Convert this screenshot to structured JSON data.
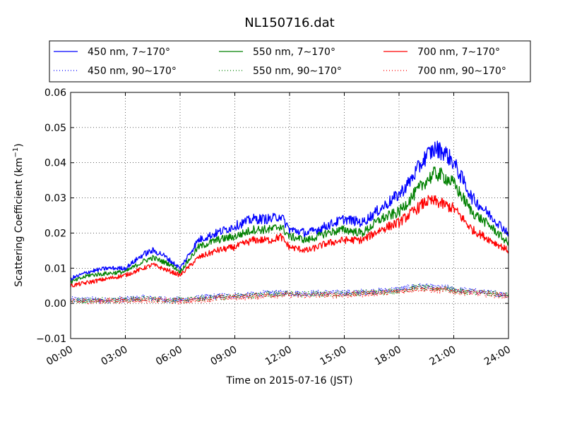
{
  "chart_data": {
    "type": "line",
    "title": "NL150716.dat",
    "xlabel": "Time on 2015-07-16 (JST)",
    "ylabel": "Scattering Coefficient (km",
    "ylabel_sup": "−1",
    "ylabel_end": ")",
    "xlim": [
      "2015-07-16 00:00",
      "2015-07-17 00:00"
    ],
    "ylim": [
      -0.01,
      0.06
    ],
    "x_ticks": [
      "00:00",
      "03:00",
      "06:00",
      "09:00",
      "12:00",
      "15:00",
      "18:00",
      "21:00",
      "24:00"
    ],
    "y_ticks": [
      "−0.01",
      "0.00",
      "0.01",
      "0.02",
      "0.03",
      "0.04",
      "0.05",
      "0.06"
    ],
    "grid": true,
    "legend_position": "top, above plot, 3 columns",
    "x_sample_times": [
      "00:00",
      "01:00",
      "02:00",
      "03:00",
      "04:00",
      "04:30",
      "05:00",
      "05:30",
      "06:00",
      "07:00",
      "08:00",
      "09:00",
      "10:00",
      "11:00",
      "11:30",
      "12:00",
      "13:00",
      "14:00",
      "15:00",
      "16:00",
      "17:00",
      "18:00",
      "18:30",
      "19:00",
      "19:30",
      "20:00",
      "20:30",
      "21:00",
      "22:00",
      "23:00",
      "24:00"
    ],
    "series": [
      {
        "name": "450 nm, 7∼170°",
        "color": "#0000ff",
        "style": "solid",
        "values": [
          0.007,
          0.009,
          0.01,
          0.01,
          0.014,
          0.015,
          0.014,
          0.012,
          0.01,
          0.018,
          0.02,
          0.022,
          0.024,
          0.024,
          0.025,
          0.021,
          0.02,
          0.022,
          0.024,
          0.023,
          0.027,
          0.031,
          0.034,
          0.038,
          0.042,
          0.044,
          0.043,
          0.04,
          0.03,
          0.025,
          0.02
        ]
      },
      {
        "name": "450 nm, 90∼170°",
        "color": "#0000ff",
        "style": "dotted",
        "values": [
          0.001,
          0.001,
          0.001,
          0.0012,
          0.0015,
          0.0015,
          0.0012,
          0.001,
          0.001,
          0.0015,
          0.002,
          0.0022,
          0.0025,
          0.003,
          0.003,
          0.003,
          0.0028,
          0.003,
          0.003,
          0.0032,
          0.0035,
          0.004,
          0.0045,
          0.005,
          0.0048,
          0.0045,
          0.0045,
          0.004,
          0.0035,
          0.003,
          0.0025
        ]
      },
      {
        "name": "550 nm, 7∼170°",
        "color": "#008000",
        "style": "solid",
        "values": [
          0.006,
          0.008,
          0.0085,
          0.009,
          0.012,
          0.013,
          0.012,
          0.011,
          0.009,
          0.016,
          0.018,
          0.019,
          0.021,
          0.021,
          0.022,
          0.019,
          0.018,
          0.02,
          0.021,
          0.02,
          0.024,
          0.026,
          0.029,
          0.032,
          0.035,
          0.037,
          0.036,
          0.034,
          0.026,
          0.022,
          0.017
        ]
      },
      {
        "name": "550 nm, 90∼170°",
        "color": "#008000",
        "style": "dotted",
        "values": [
          0.0008,
          0.0009,
          0.001,
          0.001,
          0.0013,
          0.0013,
          0.001,
          0.0009,
          0.0009,
          0.0013,
          0.0018,
          0.002,
          0.0022,
          0.0027,
          0.0027,
          0.0027,
          0.0025,
          0.0027,
          0.0027,
          0.003,
          0.0032,
          0.0037,
          0.0042,
          0.0046,
          0.0044,
          0.0042,
          0.0042,
          0.0037,
          0.0032,
          0.0028,
          0.0023
        ]
      },
      {
        "name": "700 nm, 7∼170°",
        "color": "#ff0000",
        "style": "solid",
        "values": [
          0.005,
          0.006,
          0.007,
          0.008,
          0.01,
          0.011,
          0.01,
          0.009,
          0.008,
          0.013,
          0.015,
          0.016,
          0.018,
          0.018,
          0.019,
          0.016,
          0.015,
          0.017,
          0.018,
          0.018,
          0.021,
          0.023,
          0.025,
          0.027,
          0.029,
          0.029,
          0.028,
          0.027,
          0.021,
          0.018,
          0.015
        ]
      },
      {
        "name": "700 nm, 90∼170°",
        "color": "#ff0000",
        "style": "dotted",
        "values": [
          0.0005,
          0.0006,
          0.0007,
          0.0008,
          0.001,
          0.001,
          0.0008,
          0.0007,
          0.0007,
          0.001,
          0.0015,
          0.0017,
          0.002,
          0.0024,
          0.0024,
          0.0024,
          0.0022,
          0.0024,
          0.0024,
          0.0027,
          0.003,
          0.0034,
          0.0038,
          0.0042,
          0.004,
          0.0038,
          0.0038,
          0.0034,
          0.003,
          0.0026,
          0.0021
        ]
      }
    ]
  }
}
